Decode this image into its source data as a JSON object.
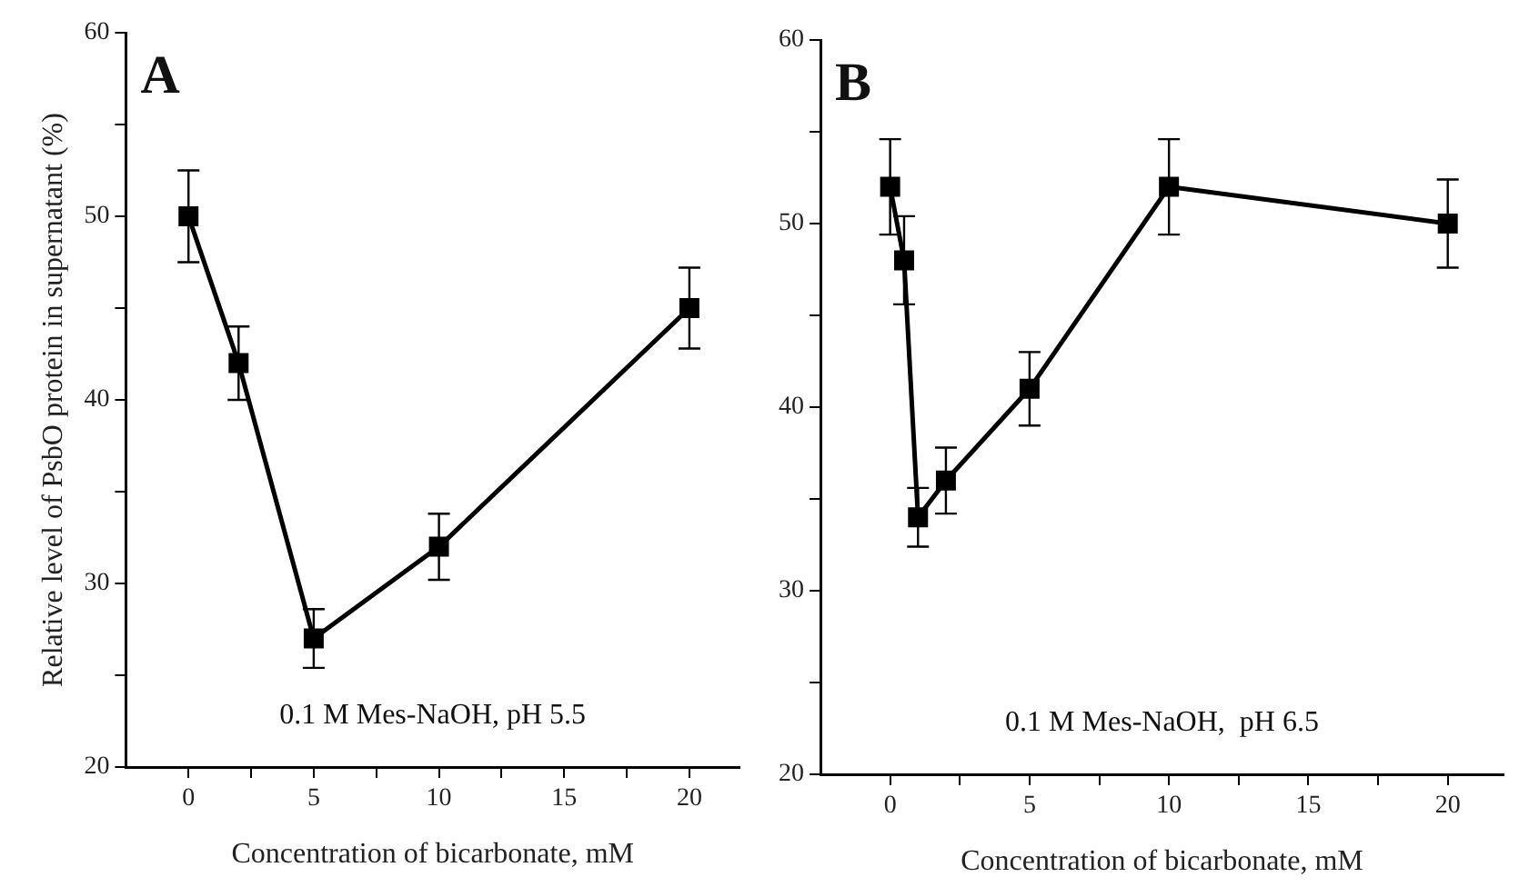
{
  "chart_data": [
    {
      "type": "line",
      "ylabel": "Relative level of PsbO protein in supernatant (%)",
      "xlabel": "Concentration of bicarbonate, mM",
      "x": [
        0,
        2,
        5,
        10,
        20
      ],
      "series": [
        {
          "color": "#000000",
          "values": [
            50,
            42,
            27,
            32,
            45
          ],
          "errors": [
            [
              47.5,
              52.5
            ],
            [
              40,
              44
            ],
            [
              25.4,
              28.6
            ],
            [
              30.2,
              33.8
            ],
            [
              42.8,
              47.2
            ]
          ]
        }
      ],
      "xlim": [
        -2.5,
        22
      ],
      "xticks": [
        0,
        {
          "value": 2.5,
          "label": null
        },
        5,
        {
          "value": 7.5,
          "label": null
        },
        10,
        {
          "value": 12.5,
          "label": null
        },
        15,
        {
          "value": 17.5,
          "label": null
        },
        20
      ],
      "ylim": [
        20,
        60
      ],
      "yticks": [
        20,
        {
          "value": 25,
          "label": null
        },
        30,
        {
          "value": 35,
          "label": null
        },
        40,
        {
          "value": 45,
          "label": null
        },
        50,
        {
          "value": 55,
          "label": null
        },
        60
      ],
      "marker": "square",
      "line_style": "solid",
      "grid": false,
      "legend": false,
      "annotations": [
        "A",
        "0.1 M Mes-NaOH, pH 5.5"
      ]
    },
    {
      "type": "line",
      "xlabel": "Concentration of bicarbonate, mM",
      "x": [
        0,
        0.5,
        1,
        2,
        5,
        10,
        20
      ],
      "series": [
        {
          "color": "#000000",
          "values": [
            52,
            48,
            34,
            36,
            41,
            52,
            50
          ],
          "errors": [
            [
              49.4,
              54.6
            ],
            [
              45.6,
              50.4
            ],
            [
              32.4,
              35.6
            ],
            [
              34.2,
              37.8
            ],
            [
              39,
              43
            ],
            [
              49.4,
              54.6
            ],
            [
              47.6,
              52.4
            ]
          ]
        }
      ],
      "xlim": [
        -2.5,
        22
      ],
      "xticks": [
        0,
        {
          "value": 2.5,
          "label": null
        },
        5,
        {
          "value": 7.5,
          "label": null
        },
        10,
        {
          "value": 12.5,
          "label": null
        },
        15,
        {
          "value": 17.5,
          "label": null
        },
        20
      ],
      "ylim": [
        20,
        60
      ],
      "yticks": [
        20,
        {
          "value": 25,
          "label": null
        },
        30,
        {
          "value": 35,
          "label": null
        },
        40,
        {
          "value": 45,
          "label": null
        },
        50,
        {
          "value": 55,
          "label": null
        },
        60
      ],
      "marker": "square",
      "line_style": "solid",
      "grid": false,
      "legend": false,
      "annotations": [
        "B",
        "0.1 M Mes-NaOH,  pH 6.5"
      ]
    }
  ]
}
